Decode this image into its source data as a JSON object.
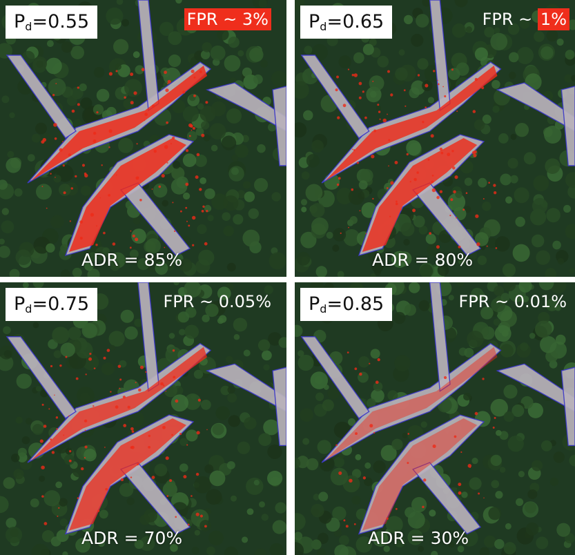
{
  "colors": {
    "forest_dark": "#1f3a22",
    "forest_mid": "#3c5e33",
    "road": "#b9b2bb",
    "detection": "#ee2a18",
    "outline": "#3a36c8"
  },
  "panels": [
    {
      "pd_symbol": "P",
      "pd_subscript": "d",
      "pd_value": "=0.55",
      "fpr_prefix": "",
      "fpr_highlight": "FPR ~ 3%",
      "adr": "ADR = 85%",
      "detection_level": 0.85
    },
    {
      "pd_symbol": "P",
      "pd_subscript": "d",
      "pd_value": "=0.65",
      "fpr_prefix": "FPR ~ ",
      "fpr_highlight": "1%",
      "adr": "ADR = 80%",
      "detection_level": 0.8
    },
    {
      "pd_symbol": "P",
      "pd_subscript": "d",
      "pd_value": "=0.75",
      "fpr_prefix": "FPR ~ 0.05%",
      "fpr_highlight": "",
      "adr": "ADR = 70%",
      "detection_level": 0.7
    },
    {
      "pd_symbol": "P",
      "pd_subscript": "d",
      "pd_value": "=0.85",
      "fpr_prefix": "FPR ~ 0.01%",
      "fpr_highlight": "",
      "adr": "ADR = 30%",
      "detection_level": 0.3
    }
  ]
}
